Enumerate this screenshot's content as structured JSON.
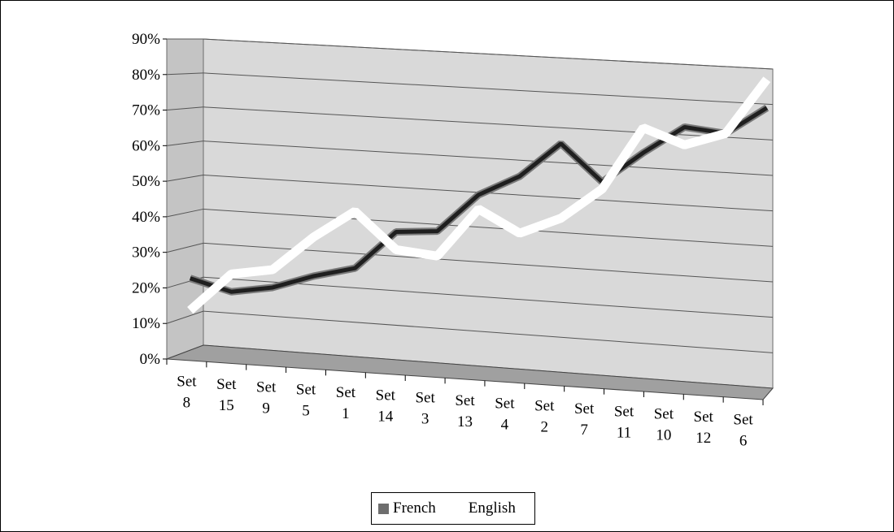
{
  "chart_data": {
    "type": "line",
    "title": "",
    "xlabel": "",
    "ylabel": "",
    "ylim": [
      0,
      0.9
    ],
    "y_ticks": [
      "0%",
      "10%",
      "20%",
      "30%",
      "40%",
      "50%",
      "60%",
      "70%",
      "80%",
      "90%"
    ],
    "categories": [
      [
        "Set",
        "8"
      ],
      [
        "Set",
        "15"
      ],
      [
        "Set",
        "9"
      ],
      [
        "Set",
        "5"
      ],
      [
        "Set",
        "1"
      ],
      [
        "Set",
        "14"
      ],
      [
        "Set",
        "3"
      ],
      [
        "Set",
        "13"
      ],
      [
        "Set",
        "4"
      ],
      [
        "Set",
        "2"
      ],
      [
        "Set",
        "7"
      ],
      [
        "Set",
        "11"
      ],
      [
        "Set",
        "10"
      ],
      [
        "Set",
        "12"
      ],
      [
        "Set",
        "6"
      ]
    ],
    "series": [
      {
        "name": "French",
        "color": "#6e6e6e",
        "values": [
          0.21,
          0.18,
          0.2,
          0.24,
          0.27,
          0.38,
          0.39,
          0.5,
          0.56,
          0.66,
          0.56,
          0.65,
          0.73,
          0.72,
          0.8
        ]
      },
      {
        "name": "English",
        "color": "#ffffff",
        "values": [
          0.12,
          0.23,
          0.25,
          0.35,
          0.43,
          0.33,
          0.32,
          0.46,
          0.4,
          0.45,
          0.54,
          0.72,
          0.68,
          0.72,
          0.88
        ]
      }
    ],
    "legend_position": "bottom",
    "grid": true
  }
}
